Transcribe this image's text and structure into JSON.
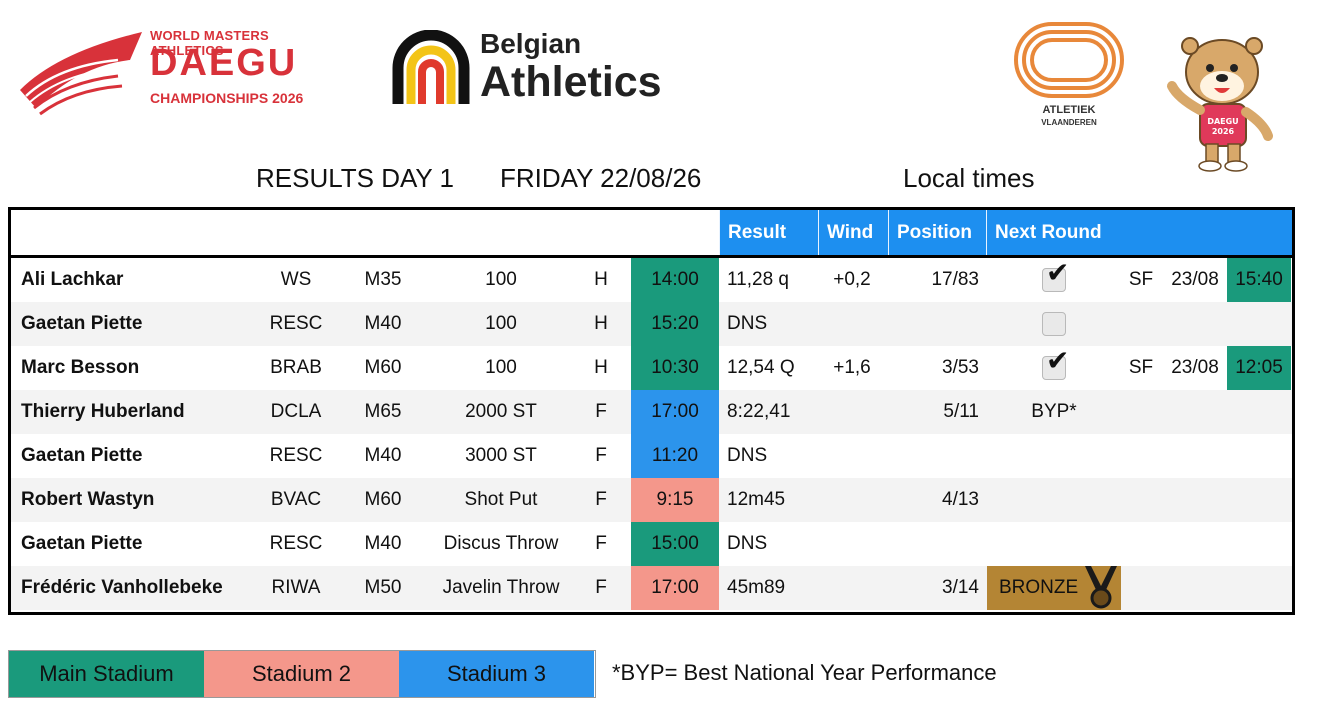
{
  "logos": {
    "daegu": {
      "top": "WORLD MASTERS ATHLETICS",
      "main": "DAEGU",
      "bottom": "CHAMPIONSHIPS 2026",
      "color": "#d8323a"
    },
    "belgian": {
      "small": "Belgian",
      "big": "Athletics"
    },
    "flanders": {
      "line1": "ATLETIEK",
      "line2": "VLAANDEREN",
      "color": "#e8883a"
    },
    "mascot": {
      "badge": "DAEGU 2026"
    }
  },
  "title": {
    "results": "RESULTS DAY 1",
    "day": "FRIDAY  22/08/26",
    "note": "Local times"
  },
  "headers": {
    "result": "Result",
    "wind": "Wind",
    "position": "Position",
    "next_round": "Next Round"
  },
  "rows": [
    {
      "name": "Ali Lachkar",
      "club": "WS",
      "cat": "M35",
      "event": "100",
      "round": "H",
      "time": "14:00",
      "venue": "main",
      "result": "11,28 q",
      "wind": "+0,2",
      "position": "17/83",
      "qualified": true,
      "next_round": "SF",
      "next_date": "23/08",
      "next_time": "15:40",
      "next_venue": "main"
    },
    {
      "name": "Gaetan Piette",
      "club": "RESC",
      "cat": "M40",
      "event": "100",
      "round": "H",
      "time": "15:20",
      "venue": "main",
      "result": "DNS",
      "wind": "",
      "position": "",
      "qualified": false
    },
    {
      "name": "Marc Besson",
      "club": "BRAB",
      "cat": "M60",
      "event": "100",
      "round": "H",
      "time": "10:30",
      "venue": "main",
      "result": "12,54 Q",
      "wind": "+1,6",
      "position": "3/53",
      "qualified": true,
      "next_round": "SF",
      "next_date": "23/08",
      "next_time": "12:05",
      "next_venue": "main"
    },
    {
      "name": "Thierry Huberland",
      "club": "DCLA",
      "cat": "M65",
      "event": "2000 ST",
      "round": "F",
      "time": "17:00",
      "venue": "s3",
      "result": "8:22,41",
      "wind": "",
      "position": "5/11",
      "note": "BYP*"
    },
    {
      "name": "Gaetan Piette",
      "club": "RESC",
      "cat": "M40",
      "event": "3000 ST",
      "round": "F",
      "time": "11:20",
      "venue": "s3",
      "result": "DNS",
      "wind": "",
      "position": ""
    },
    {
      "name": "Robert Wastyn",
      "club": "BVAC",
      "cat": "M60",
      "event": "Shot Put",
      "round": "F",
      "time": "9:15",
      "venue": "s2",
      "result": "12m45",
      "wind": "",
      "position": "4/13"
    },
    {
      "name": "Gaetan Piette",
      "club": "RESC",
      "cat": "M40",
      "event": "Discus Throw",
      "round": "F",
      "time": "15:00",
      "venue": "main",
      "result": "DNS",
      "wind": "",
      "position": ""
    },
    {
      "name": "Frédéric Vanhollebeke",
      "club": "RIWA",
      "cat": "M50",
      "event": "Javelin Throw",
      "round": "F",
      "time": "17:00",
      "venue": "s2",
      "result": "45m89",
      "wind": "",
      "position": "3/14",
      "medal": "BRONZE"
    }
  ],
  "legend": {
    "main": "Main Stadium",
    "s2": "Stadium 2",
    "s3": "Stadium 3",
    "note": "*BYP= Best National Year Performance"
  },
  "colors": {
    "main": "#1a9a7c",
    "s2": "#f4978b",
    "s3": "#2c94ec",
    "header": "#1d8ff0",
    "bronze": "#b48534"
  }
}
